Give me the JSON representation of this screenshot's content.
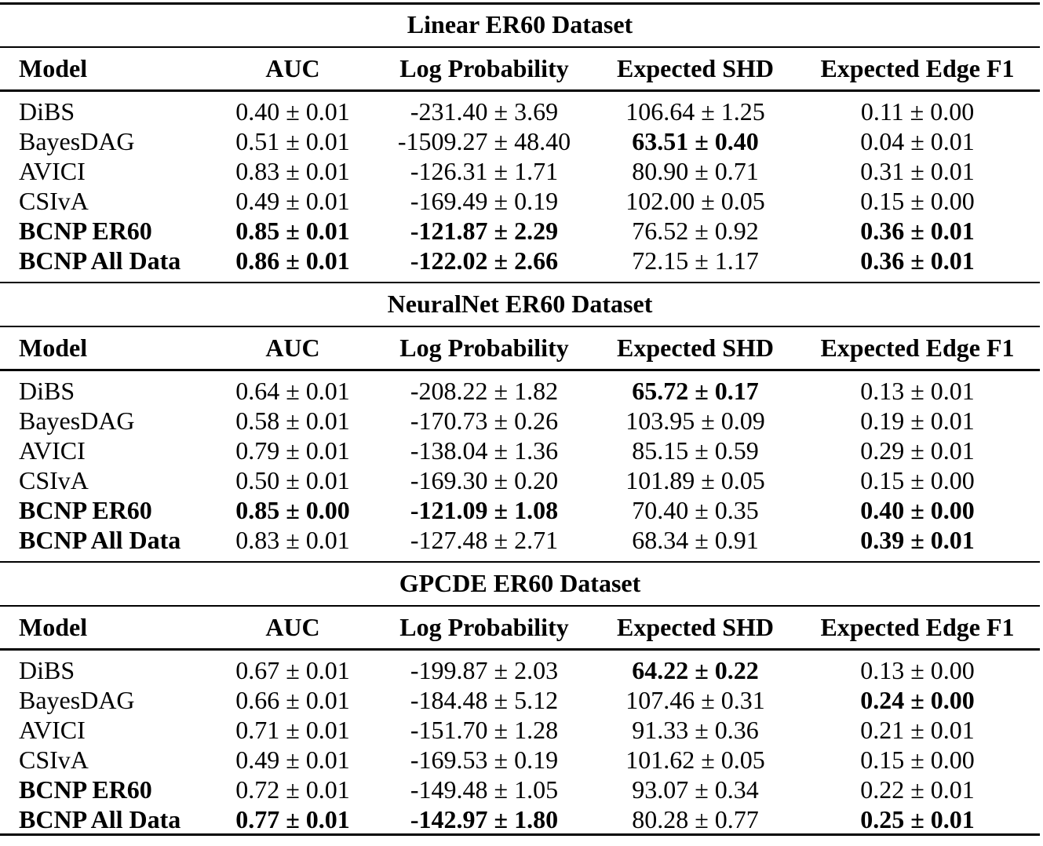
{
  "sections": [
    {
      "title": "Linear ER60 Dataset",
      "header": [
        "Model",
        "AUC",
        "Log Probability",
        "Expected SHD",
        "Expected Edge F1"
      ],
      "rows": [
        [
          "DiBS",
          "0.40 ± 0.01",
          "-231.40 ± 3.69",
          "106.64 ± 1.25",
          "0.11 ± 0.00"
        ],
        [
          "BayesDAG",
          "0.51 ± 0.01",
          "-1509.27 ± 48.40",
          "63.51 ± 0.40",
          "0.04 ± 0.01"
        ],
        [
          "AVICI",
          "0.83 ± 0.01",
          "-126.31 ± 1.71",
          "80.90 ± 0.71",
          "0.31 ± 0.01"
        ],
        [
          "CSIvA",
          "0.49 ± 0.01",
          "-169.49 ± 0.19",
          "102.00 ± 0.05",
          "0.15 ± 0.00"
        ],
        [
          "BCNP ER60",
          "0.85 ± 0.01",
          "-121.87 ± 2.29",
          "76.52 ± 0.92",
          "0.36 ± 0.01"
        ],
        [
          "BCNP All Data",
          "0.86 ± 0.01",
          "-122.02 ± 2.66",
          "72.15 ± 1.17",
          "0.36 ± 0.01"
        ]
      ],
      "bold": [
        [
          false,
          false,
          false,
          false,
          false
        ],
        [
          false,
          false,
          false,
          true,
          false
        ],
        [
          false,
          false,
          false,
          false,
          false
        ],
        [
          false,
          false,
          false,
          false,
          false
        ],
        [
          true,
          true,
          true,
          false,
          true
        ],
        [
          true,
          true,
          true,
          false,
          true
        ]
      ]
    },
    {
      "title": "NeuralNet ER60 Dataset",
      "header": [
        "Model",
        "AUC",
        "Log Probability",
        "Expected SHD",
        "Expected Edge F1"
      ],
      "rows": [
        [
          "DiBS",
          "0.64 ± 0.01",
          "-208.22 ± 1.82",
          "65.72 ± 0.17",
          "0.13 ± 0.01"
        ],
        [
          "BayesDAG",
          "0.58 ± 0.01",
          "-170.73 ± 0.26",
          "103.95 ± 0.09",
          "0.19 ± 0.01"
        ],
        [
          "AVICI",
          "0.79 ± 0.01",
          "-138.04 ± 1.36",
          "85.15 ± 0.59",
          "0.29 ± 0.01"
        ],
        [
          "CSIvA",
          "0.50 ± 0.01",
          "-169.30 ± 0.20",
          "101.89 ± 0.05",
          "0.15 ± 0.00"
        ],
        [
          "BCNP ER60",
          "0.85 ± 0.00",
          "-121.09 ± 1.08",
          "70.40 ± 0.35",
          "0.40 ± 0.00"
        ],
        [
          "BCNP All Data",
          "0.83 ± 0.01",
          "-127.48 ± 2.71",
          "68.34 ± 0.91",
          "0.39 ± 0.01"
        ]
      ],
      "bold": [
        [
          false,
          false,
          false,
          true,
          false
        ],
        [
          false,
          false,
          false,
          false,
          false
        ],
        [
          false,
          false,
          false,
          false,
          false
        ],
        [
          false,
          false,
          false,
          false,
          false
        ],
        [
          true,
          true,
          true,
          false,
          true
        ],
        [
          true,
          false,
          false,
          false,
          true
        ]
      ]
    },
    {
      "title": "GPCDE ER60 Dataset",
      "header": [
        "Model",
        "AUC",
        "Log Probability",
        "Expected SHD",
        "Expected Edge F1"
      ],
      "rows": [
        [
          "DiBS",
          "0.67 ± 0.01",
          "-199.87 ± 2.03",
          "64.22 ± 0.22",
          "0.13 ± 0.00"
        ],
        [
          "BayesDAG",
          "0.66 ± 0.01",
          "-184.48 ± 5.12",
          "107.46 ± 0.31",
          "0.24 ± 0.00"
        ],
        [
          "AVICI",
          "0.71 ± 0.01",
          "-151.70 ± 1.28",
          "91.33 ± 0.36",
          "0.21 ± 0.01"
        ],
        [
          "CSIvA",
          "0.49 ± 0.01",
          "-169.53 ± 0.19",
          "101.62 ± 0.05",
          "0.15 ± 0.00"
        ],
        [
          "BCNP ER60",
          "0.72 ± 0.01",
          "-149.48 ± 1.05",
          "93.07 ± 0.34",
          "0.22 ± 0.01"
        ],
        [
          "BCNP All Data",
          "0.77 ± 0.01",
          "-142.97 ± 1.80",
          "80.28 ± 0.77",
          "0.25 ± 0.01"
        ]
      ],
      "bold": [
        [
          false,
          false,
          false,
          true,
          false
        ],
        [
          false,
          false,
          false,
          false,
          true
        ],
        [
          false,
          false,
          false,
          false,
          false
        ],
        [
          false,
          false,
          false,
          false,
          false
        ],
        [
          true,
          false,
          false,
          false,
          false
        ],
        [
          true,
          true,
          true,
          false,
          true
        ]
      ]
    }
  ]
}
